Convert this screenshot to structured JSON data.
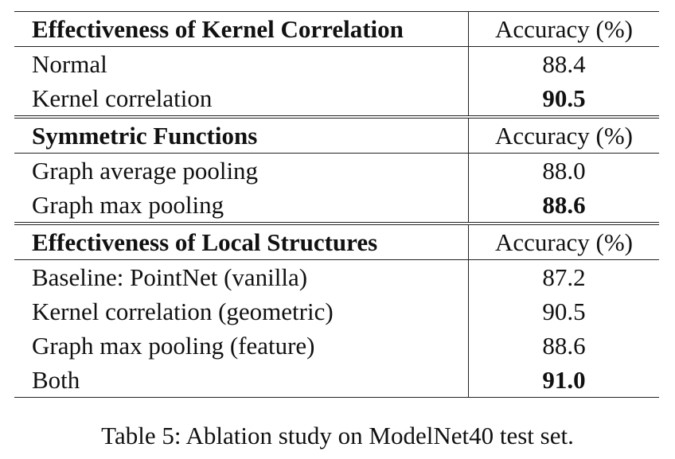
{
  "sections": [
    {
      "header": "Effectiveness of Kernel Correlation",
      "header_value": "Accuracy (%)",
      "rows": [
        {
          "label": "Normal",
          "value": "88.4"
        },
        {
          "label": "Kernel correlation",
          "value": "90.5"
        }
      ]
    },
    {
      "header": "Symmetric Functions",
      "header_value": "Accuracy (%)",
      "rows": [
        {
          "label": "Graph average pooling",
          "value": "88.0"
        },
        {
          "label": "Graph max pooling",
          "value": "88.6"
        }
      ]
    },
    {
      "header": "Effectiveness of Local Structures",
      "header_value": "Accuracy (%)",
      "rows": [
        {
          "label": "Baseline: PointNet (vanilla)",
          "value": "87.2"
        },
        {
          "label": "Kernel correlation (geometric)",
          "value": "90.5"
        },
        {
          "label": "Graph max pooling (feature)",
          "value": "88.6"
        },
        {
          "label": "Both",
          "value": "91.0"
        }
      ]
    }
  ],
  "caption": "Table 5: Ablation study on ModelNet40 test set."
}
